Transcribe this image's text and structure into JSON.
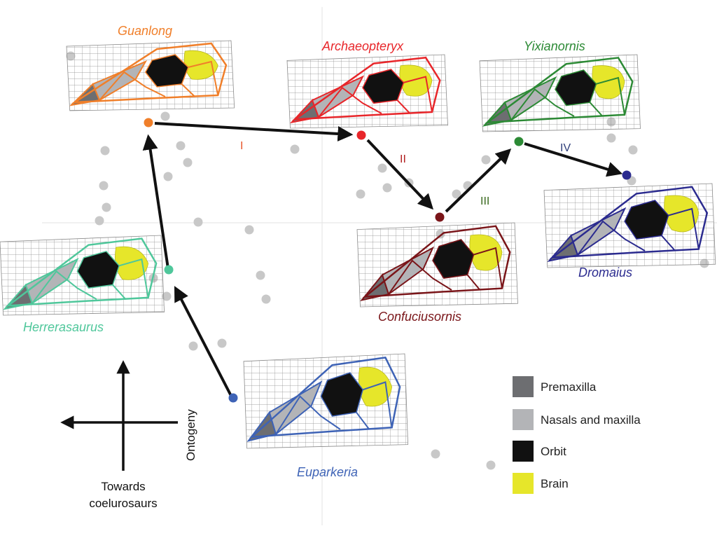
{
  "taxa": {
    "guanlong": {
      "name": "Guanlong",
      "color": "#f07f2a"
    },
    "archaeopteryx": {
      "name": "Archaeopteryx",
      "color": "#e8262a"
    },
    "yixianornis": {
      "name": "Yixianornis",
      "color": "#2c8a35"
    },
    "confuciusornis": {
      "name": "Confuciusornis",
      "color": "#7a1519"
    },
    "dromaius": {
      "name": "Dromaius",
      "color": "#2b2b8f"
    },
    "herrerasaurus": {
      "name": "Herrerasaurus",
      "color": "#4fc79b"
    },
    "euparkeria": {
      "name": "Euparkeria",
      "color": "#3e63b6"
    }
  },
  "steps": [
    {
      "label": "I",
      "color": "#e8552a"
    },
    {
      "label": "II",
      "color": "#b22020"
    },
    {
      "label": "III",
      "color": "#3a6a1f"
    },
    {
      "label": "IV",
      "color": "#2f3f7a"
    }
  ],
  "legend": [
    {
      "label": "Premaxilla",
      "color": "#6d6e71"
    },
    {
      "label": "Nasals and maxilla",
      "color": "#b3b4b7"
    },
    {
      "label": "Orbit",
      "color": "#111111"
    },
    {
      "label": "Brain",
      "color": "#e6e62a"
    }
  ],
  "axes": {
    "vertical_label": "Ontogeny",
    "horizontal_label_line1": "Towards",
    "horizontal_label_line2": "coelurosaurs"
  }
}
